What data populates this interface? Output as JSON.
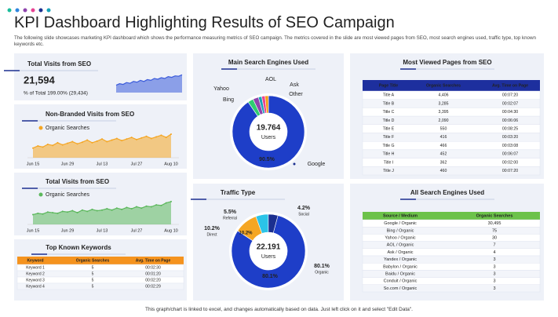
{
  "header": {
    "title": "KPI Dashboard Highlighting Results of SEO Campaign",
    "subtitle": "The following slide showcases marketing KPI dashboard which shows the performance measuring metrics of SEO campaign. The metrics covered in the slide are most viewed pages from SEO, most search engines used, traffic type, top known keywords etc.",
    "footer": "This graph/chart is linked to excel, and changes automatically based on data. Just left click on it and select \"Edit Data\"."
  },
  "total_visits": {
    "title": "Total Visits  from SEO",
    "value": "21,594",
    "detail": "% of Total 199.00% (29,434)"
  },
  "chart_data": [
    {
      "type": "area",
      "color": "#3b5bdb",
      "values": [
        20,
        24,
        22,
        27,
        25,
        30,
        28,
        33,
        30,
        35,
        33,
        38,
        36,
        40,
        38,
        43,
        41,
        45,
        44,
        48
      ]
    },
    {
      "type": "area",
      "title": "Non-Branded Visits from SEO",
      "categories": [
        "Jun 15",
        null,
        null,
        null,
        null,
        null,
        null,
        "Jun 29",
        null,
        null,
        null,
        null,
        null,
        null,
        "Jul 13",
        null,
        null,
        null,
        null,
        null,
        null,
        "Jul 27",
        null,
        null,
        null,
        null,
        null,
        null,
        "Aug 10"
      ],
      "series": [
        {
          "name": "Organic Searches",
          "color": "#f5a623",
          "values": [
            18,
            22,
            20,
            25,
            23,
            28,
            24,
            27,
            30,
            26,
            29,
            33,
            28,
            31,
            35,
            30,
            33,
            36,
            32,
            35,
            38,
            34,
            37,
            40,
            36,
            39,
            42,
            38,
            44
          ]
        }
      ]
    },
    {
      "type": "area",
      "title": "Total Visits  from SEO",
      "categories": [
        "Jun 15",
        null,
        null,
        null,
        null,
        null,
        null,
        "Jun 29",
        null,
        null,
        null,
        null,
        null,
        null,
        "Jul 13",
        null,
        null,
        null,
        null,
        null,
        null,
        "Jul 27",
        null,
        null,
        null,
        null,
        null,
        null,
        "Aug 10"
      ],
      "series": [
        {
          "name": "Organic Searches",
          "color": "#5cb85c",
          "values": [
            15,
            17,
            16,
            19,
            18,
            17,
            20,
            19,
            21,
            18,
            22,
            20,
            23,
            21,
            22,
            24,
            22,
            25,
            23,
            26,
            24,
            27,
            25,
            28,
            27,
            30,
            29,
            33,
            35
          ]
        }
      ]
    },
    {
      "type": "pie",
      "title": "Main Search Engines Used",
      "categories": [
        "Google",
        "Bing",
        "Yahoo",
        "AOL",
        "Ask",
        "Other"
      ],
      "values": [
        90.5,
        2.5,
        2.5,
        1.5,
        1.5,
        1.5
      ],
      "value_labels": [
        "90.5%",
        null,
        null,
        null,
        null,
        null
      ],
      "colors": [
        "#1e3ec8",
        "#2ecc71",
        "#8e44ad",
        "#17a2b8",
        "#e84393",
        "#f39c12"
      ],
      "center_value": "19.764",
      "center_label": "Users"
    },
    {
      "type": "pie",
      "title": "Traffic Type",
      "categories": [
        "Organic",
        "Direct",
        "Referral",
        "Social"
      ],
      "values": [
        80.1,
        10.2,
        5.5,
        4.2
      ],
      "value_labels": [
        "80.1%",
        "10.2%",
        "5.5%",
        "4.2%"
      ],
      "colors": [
        "#1e3ec8",
        "#f5a623",
        "#2bc4e8",
        "#1b2f8f"
      ],
      "center_value": "22.191",
      "center_label": "Users"
    }
  ],
  "keywords_table": {
    "title": "Top Known Keywords",
    "columns": [
      "Keyword",
      "Organic Searches",
      "Avg. Time on Page"
    ],
    "rows": [
      [
        "Keyword 1",
        "5",
        "00:02:30"
      ],
      [
        "Keyword 2",
        "5",
        "00:01:20"
      ],
      [
        "Keyword 3",
        "5",
        "00:02:20"
      ],
      [
        "Keyword 4",
        "5",
        "00:02:29"
      ]
    ]
  },
  "pages_table": {
    "title": "Most Viewed Pages from SEO",
    "columns": [
      "Page Title",
      "Organic Searches",
      "Avg. Time on Page"
    ],
    "rows": [
      [
        "Title A",
        "4,406",
        "00:07:20"
      ],
      [
        "Title B",
        "3,285",
        "00:02:07"
      ],
      [
        "Title C",
        "3,395",
        "00:04:30"
      ],
      [
        "Title D",
        "2,090",
        "00:06:06"
      ],
      [
        "Title E",
        "550",
        "00:08:25"
      ],
      [
        "Title F",
        "416",
        "00:03:20"
      ],
      [
        "Title G",
        "466",
        "00:03:08"
      ],
      [
        "Title H",
        "452",
        "00:06:07"
      ],
      [
        "Title I",
        "362",
        "00:02:00"
      ],
      [
        "Title J",
        "460",
        "00:07:20"
      ]
    ]
  },
  "engines_table": {
    "title": "All Search Engines Used",
    "columns": [
      "Source / Medium",
      "Organic Searches"
    ],
    "rows": [
      [
        "Google / Organic",
        "30,495"
      ],
      [
        "Bing / Organic",
        "75"
      ],
      [
        "Yahoo / Organic",
        "30"
      ],
      [
        "AOL / Organic",
        "7"
      ],
      [
        "Ask / Organic",
        "4"
      ],
      [
        "Yandex / Organic",
        "3"
      ],
      [
        "Babylon / Organic",
        "3"
      ],
      [
        "Baidu / Organic",
        "3"
      ],
      [
        "Conduit / Organic",
        "3"
      ],
      [
        "So.com / Organic",
        "3"
      ]
    ]
  }
}
